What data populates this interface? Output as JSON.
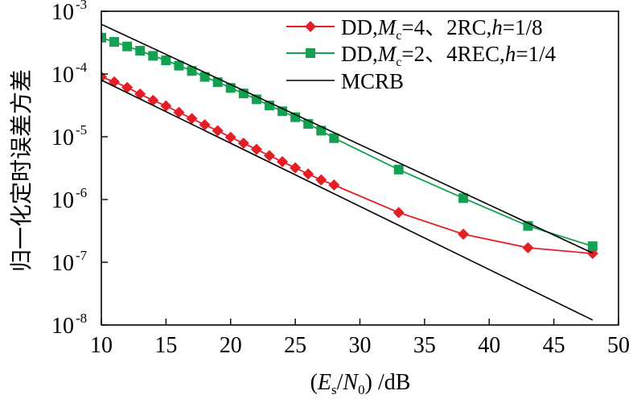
{
  "chart_data": {
    "type": "line",
    "title": "",
    "xlabel": "(Es/N0) /dB",
    "xlabel_parts": {
      "open": "(",
      "e": "E",
      "e_sub": "s",
      "slash": "/",
      "n": "N",
      "n_sub": "0",
      "close": ")",
      "unit": " /dB"
    },
    "ylabel": "归一化定时误差方差",
    "yscale": "log",
    "xlim": [
      10,
      50
    ],
    "ylim": [
      1e-08,
      0.001
    ],
    "x_ticks": [
      10,
      15,
      20,
      25,
      30,
      35,
      40,
      45,
      50
    ],
    "y_ticks": [
      {
        "base": "10",
        "exp": "-3",
        "value": 0.001
      },
      {
        "base": "10",
        "exp": "-4",
        "value": 0.0001
      },
      {
        "base": "10",
        "exp": "-5",
        "value": 1e-05
      },
      {
        "base": "10",
        "exp": "-6",
        "value": 1e-06
      },
      {
        "base": "10",
        "exp": "-7",
        "value": 1e-07
      },
      {
        "base": "10",
        "exp": "-8",
        "value": 1e-08
      }
    ],
    "legend_position": "top-right",
    "series": [
      {
        "name": "DD,Mc=4、2RC,h=1/8",
        "legend": {
          "pre": "DD,",
          "m": "M",
          "m_sub": "c",
          "post": "=4、2RC,",
          "h": "h",
          "tail": "=1/8"
        },
        "color": "#e31e24",
        "marker": "diamond",
        "x": [
          10,
          11,
          12,
          13,
          14,
          15,
          16,
          17,
          18,
          19,
          20,
          21,
          22,
          23,
          24,
          25,
          26,
          27,
          28,
          33,
          38,
          43,
          48
        ],
        "y": [
          9e-05,
          7.5e-05,
          6.1e-05,
          4.8e-05,
          3.8e-05,
          3.1e-05,
          2.45e-05,
          1.95e-05,
          1.55e-05,
          1.25e-05,
          9.8e-06,
          7.9e-06,
          6.3e-06,
          5e-06,
          4e-06,
          3.2e-06,
          2.55e-06,
          2.05e-06,
          1.7e-06,
          6.2e-07,
          2.8e-07,
          1.7e-07,
          1.38e-07
        ]
      },
      {
        "name": "DD,Mc=2、4REC,h=1/4",
        "legend": {
          "pre": "DD,",
          "m": "M",
          "m_sub": "c",
          "post": "=2、4REC,",
          "h": "h",
          "tail": "=1/4"
        },
        "color": "#12a150",
        "marker": "square",
        "x": [
          10,
          11,
          12,
          13,
          14,
          15,
          16,
          17,
          18,
          19,
          20,
          21,
          22,
          23,
          24,
          25,
          26,
          27,
          28,
          33,
          38,
          43,
          48
        ],
        "y": [
          0.00038,
          0.000325,
          0.000275,
          0.000235,
          0.000195,
          0.000165,
          0.000136,
          0.000112,
          9e-05,
          7.4e-05,
          6e-05,
          4.9e-05,
          3.95e-05,
          3.15e-05,
          2.55e-05,
          2.05e-05,
          1.6e-05,
          1.25e-05,
          9.5e-06,
          3e-06,
          1.05e-06,
          3.8e-07,
          1.8e-07
        ]
      },
      {
        "name": "MCRB",
        "legend": {
          "pre": "MCRB"
        },
        "color": "#000000",
        "marker": "none",
        "lines": [
          {
            "x": [
              10,
              48
            ],
            "y": [
              0.00062,
              1.4e-07
            ]
          },
          {
            "x": [
              10,
              48
            ],
            "y": [
              8e-05,
              1.2e-08
            ]
          }
        ]
      }
    ]
  }
}
